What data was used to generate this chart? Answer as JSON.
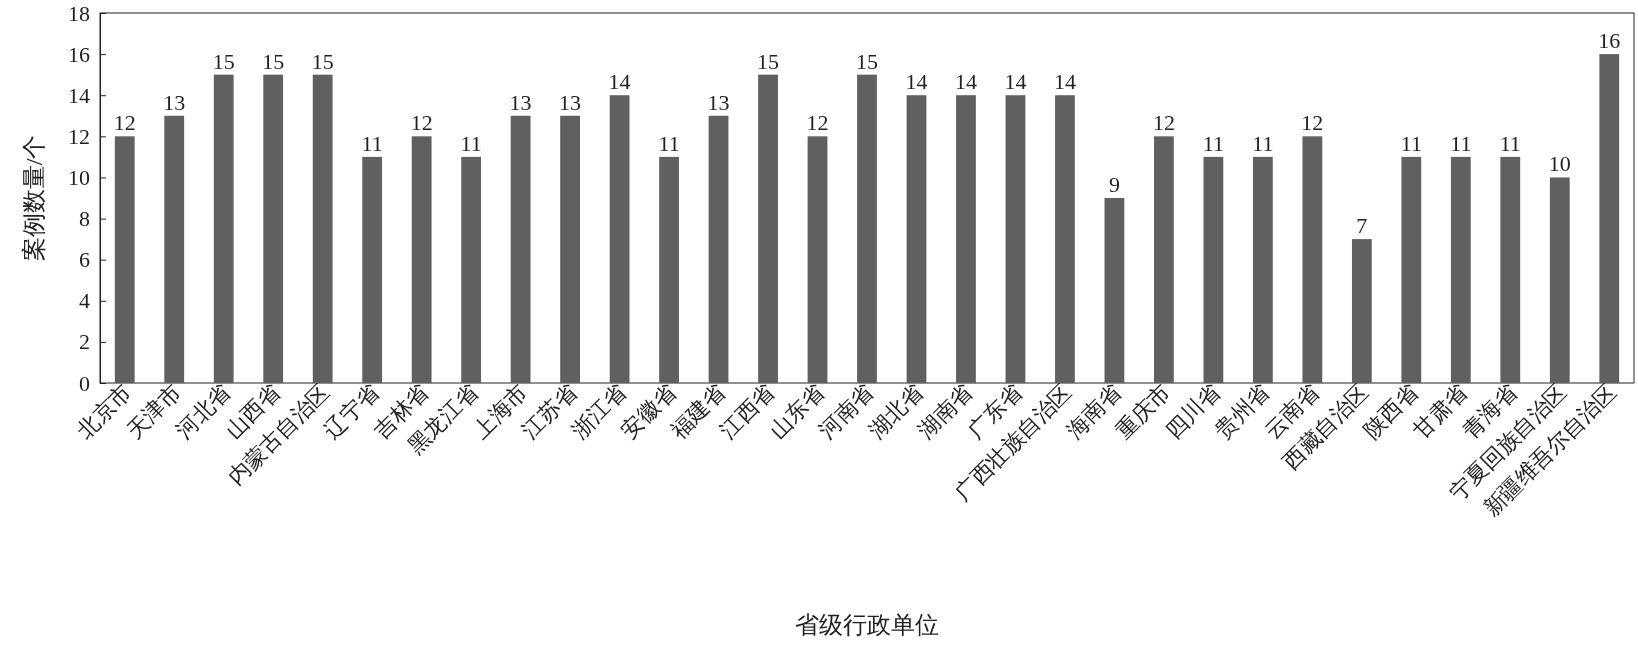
{
  "chart_data": {
    "type": "bar",
    "xlabel": "省级行政单位",
    "ylabel": "案例数量/个",
    "categories": [
      "北京市",
      "天津市",
      "河北省",
      "山西省",
      "内蒙古自治区",
      "辽宁省",
      "吉林省",
      "黑龙江省",
      "上海市",
      "江苏省",
      "浙江省",
      "安徽省",
      "福建省",
      "江西省",
      "山东省",
      "河南省",
      "湖北省",
      "湖南省",
      "广东省",
      "广西壮族自治区",
      "海南省",
      "重庆市",
      "四川省",
      "贵州省",
      "云南省",
      "西藏自治区",
      "陕西省",
      "甘肃省",
      "青海省",
      "宁夏回族自治区",
      "新疆维吾尔自治区"
    ],
    "values": [
      12,
      13,
      15,
      15,
      15,
      11,
      12,
      11,
      13,
      13,
      14,
      11,
      13,
      15,
      12,
      15,
      14,
      14,
      14,
      14,
      9,
      12,
      11,
      11,
      12,
      7,
      11,
      11,
      11,
      10,
      16
    ],
    "color": "#606060",
    "ylim": [
      0,
      18
    ],
    "yticks": [
      0,
      2,
      4,
      6,
      8,
      10,
      12,
      14,
      16,
      18
    ],
    "data_labels": true
  }
}
